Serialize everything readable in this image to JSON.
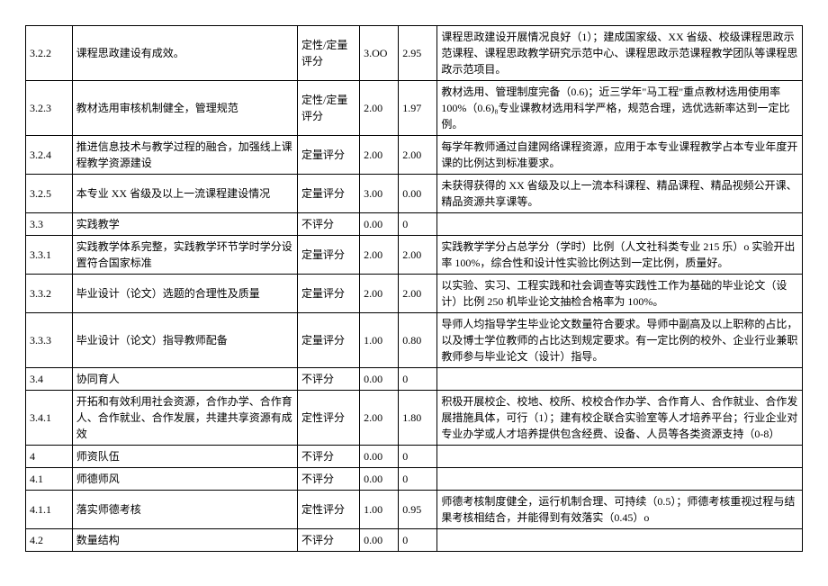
{
  "rows": [
    {
      "id": "3.2.2",
      "name": "课程思政建设有成效。",
      "type": "定性/定量评分",
      "max": "3.OO",
      "score": "2.95",
      "desc": "课程思政建设开展情况良好（1）；建成国家级、XX 省级、校级课程思政示范课程、课程思政教学研究示范中心、课程思政示范课程教学团队等课程思政示范项目。"
    },
    {
      "id": "3.2.3",
      "name": "教材选用审核机制健全，管理规范",
      "type": "定性/定量评分",
      "max": "2.00",
      "score": "1.97",
      "desc": "教材选用、管理制度完备（0.6)；近三学年\"马工程\"重点教材选用使用率 100%（0.6)₈专业课教材选用科学严格，规范合理，选优选新率达到一定比例。"
    },
    {
      "id": "3.2.4",
      "name": "推进信息技术与教学过程的融合，加强线上课程教学资源建设",
      "type": "定量评分",
      "max": "2.00",
      "score": "2.00",
      "desc": "每学年教师通过自建网络课程资源，应用于本专业课程教学占本专业年度开课的比例达到标准要求。"
    },
    {
      "id": "3.2.5",
      "name": "本专业 XX 省级及以上一流课程建设情况",
      "type": "定量评分",
      "max": "3.00",
      "score": "0.00",
      "desc": "未获得获得的 XX 省级及以上一流本科课程、精品课程、精品视频公开课、精品资源共享课等。"
    },
    {
      "id": "3.3",
      "name": "实践教学",
      "type": "不评分",
      "max": "0.00",
      "score": "0",
      "desc": ""
    },
    {
      "id": "3.3.1",
      "name": "实践教学体系完整，实践教学环节学时学分设置符合国家标准",
      "type": "定量评分",
      "max": "2.00",
      "score": "2.00",
      "desc": "实践教学学分占总学分（学时）比例（人文社科类专业 215 乐）o 实验开出率 100%，综合性和设计性实验比例达到一定比例，质量好。"
    },
    {
      "id": "3.3.2",
      "name": "毕业设计（论文）选题的合理性及质量",
      "type": "定量评分",
      "max": "2.00",
      "score": "2.00",
      "desc": "以实验、实习、工程实践和社会调查等实践性工作为基础的毕业论文（设计）比例 250 机毕业论文抽检合格率为 100%。"
    },
    {
      "id": "3.3.3",
      "name": "毕业设计（论文）指导教师配备",
      "type": "定量评分",
      "max": "1.00",
      "score": "0.80",
      "desc": "导师人均指导学生毕业论文数量符合要求。导师中副高及以上职称的占比，以及博士学位教师的占比达到规定要求。有一定比例的校外、企业行业兼职教师参与毕业论文（设计）指导。"
    },
    {
      "id": "3.4",
      "name": "协同育人",
      "type": "不评分",
      "max": "0.00",
      "score": "0",
      "desc": ""
    },
    {
      "id": "3.4.1",
      "name": "开拓和有效利用社会资源，合作办学、合作育人、合作就业、合作发展，共建共享资源有成效",
      "type": "定性评分",
      "max": "2.00",
      "score": "1.80",
      "desc": "积极开展校企、校地、校所、校校合作办学、合作育人、合作就业、合作发展措施具体，可行（1）；建有校企联合实验室等人才培养平台；行业企业对专业办学或人才培养提供包含经费、设备、人员等各类资源支持（0-8）"
    },
    {
      "id": "4",
      "name": "师资队伍",
      "type": "不评分",
      "max": "0.00",
      "score": "0",
      "desc": ""
    },
    {
      "id": "4.1",
      "name": "师德师风",
      "type": "不评分",
      "max": "0.00",
      "score": "0",
      "desc": ""
    },
    {
      "id": "4.1.1",
      "name": "落实师德考核",
      "type": "定性评分",
      "max": "1.00",
      "score": "0.95",
      "desc": "师德考核制度健全，运行机制合理、可持续（0.5）；师德考核重视过程与结果考核相结合，并能得到有效落实（0.45）o"
    },
    {
      "id": "4.2",
      "name": "数量结构",
      "type": "不评分",
      "max": "0.00",
      "score": "0",
      "desc": ""
    }
  ]
}
